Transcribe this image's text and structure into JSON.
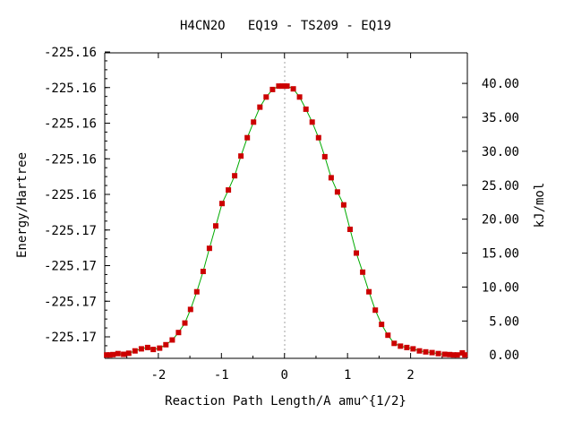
{
  "chart_data": {
    "type": "scatter",
    "title": "H4CN2O   EQ19 - TS209 - EQ19",
    "xlabel": "Reaction Path Length/A amu^{1/2}",
    "ylabel": "Energy/Hartree",
    "y2label": "kJ/mol",
    "xlim": [
      -2.85,
      2.9
    ],
    "y2lim": [
      -0.5,
      44.5
    ],
    "x_ticks": [
      -2,
      -1,
      0,
      1,
      2
    ],
    "x_tick_labels": [
      "-2",
      "-1",
      "0",
      "1",
      "2"
    ],
    "y_left_tick_labels": [
      "-225.16",
      "-225.16",
      "-225.16",
      "-225.16",
      "-225.16",
      "-225.17",
      "-225.17",
      "-225.17",
      "-225.17"
    ],
    "y2_ticks": [
      0,
      5,
      10,
      15,
      20,
      25,
      30,
      35,
      40
    ],
    "y2_tick_labels": [
      "0.00",
      "5.00",
      "10.00",
      "15.00",
      "20.00",
      "25.00",
      "30.00",
      "35.00",
      "40.00"
    ],
    "vertical_reference_line_x": 0,
    "grid": false,
    "colors": {
      "line": "#00aa00",
      "markers": "#cc0000",
      "reference_line": "#a0a0a0"
    },
    "series": [
      {
        "x": [
          -2.82,
          -2.77,
          -2.72,
          -2.64,
          -2.55,
          -2.47,
          -2.37,
          -2.27,
          -2.17,
          -2.08,
          -1.98,
          -1.88,
          -1.78,
          -1.68,
          -1.58,
          -1.49,
          -1.39,
          -1.29,
          -1.19,
          -1.09,
          -0.99,
          -0.89,
          -0.79,
          -0.69,
          -0.59,
          -0.49,
          -0.39,
          -0.29,
          -0.19,
          -0.09,
          -0.04,
          0.0,
          0.04,
          0.14,
          0.24,
          0.34,
          0.44,
          0.54,
          0.64,
          0.74,
          0.84,
          0.94,
          1.04,
          1.14,
          1.24,
          1.34,
          1.44,
          1.54,
          1.64,
          1.74,
          1.84,
          1.94,
          2.04,
          2.14,
          2.24,
          2.34,
          2.44,
          2.54,
          2.62,
          2.68,
          2.74,
          2.82,
          2.86
        ],
        "y": [
          0.0,
          0.0,
          0.05,
          0.2,
          0.1,
          0.25,
          0.6,
          0.9,
          1.1,
          0.8,
          1.0,
          1.5,
          2.2,
          3.3,
          4.7,
          6.7,
          9.3,
          12.3,
          15.7,
          19.0,
          22.3,
          24.3,
          26.4,
          29.3,
          32.0,
          34.3,
          36.5,
          38.0,
          39.1,
          39.6,
          39.6,
          39.6,
          39.6,
          39.2,
          38.0,
          36.2,
          34.3,
          32.0,
          29.2,
          26.1,
          24.0,
          22.1,
          18.5,
          15.0,
          12.2,
          9.3,
          6.6,
          4.5,
          2.9,
          1.7,
          1.3,
          1.1,
          0.9,
          0.6,
          0.45,
          0.35,
          0.2,
          0.1,
          0.05,
          0.0,
          0.0,
          0.3,
          0.0
        ]
      }
    ]
  }
}
